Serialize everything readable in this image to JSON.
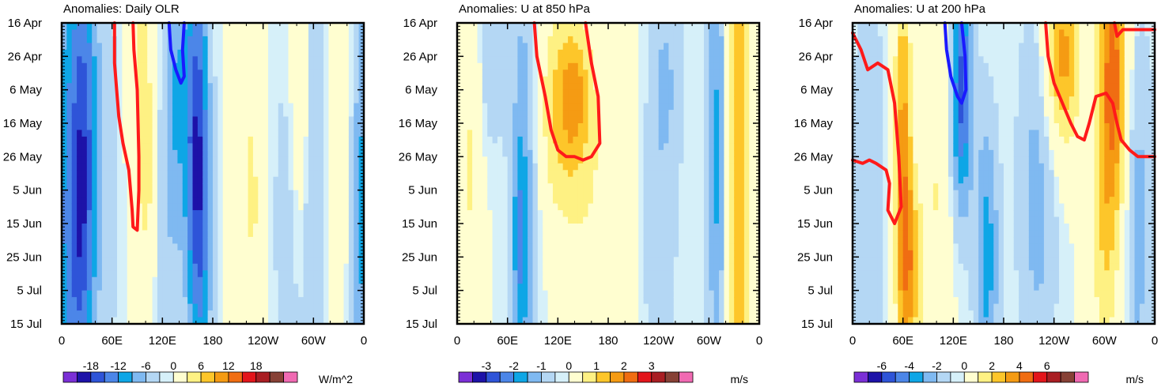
{
  "chart_data": [
    {
      "type": "heatmap",
      "title": "Anomalies: Daily OLR",
      "x_tick_labels": [
        "0",
        "60E",
        "120E",
        "180",
        "120W",
        "60W",
        "0"
      ],
      "y_tick_labels": [
        "16 Apr",
        "26 Apr",
        "6 May",
        "16 May",
        "26 May",
        "5 Jun",
        "15 Jun",
        "25 Jun",
        "5 Jul",
        "15 Jul"
      ],
      "colorbar_labels": [
        "-18",
        "-12",
        "-6",
        "0",
        "6",
        "12",
        "18"
      ],
      "units": "W/m^2",
      "xlim_deg_east": [
        0,
        360
      ],
      "ylim_days_from_16Apr": [
        0,
        90
      ],
      "fields": [
        {
          "lon": 10,
          "day": 40,
          "lw": 16,
          "lh": 60,
          "amp": -8
        },
        {
          "lon": 28,
          "day": 30,
          "lw": 11,
          "lh": 40,
          "amp": -10
        },
        {
          "lon": 20,
          "day": 75,
          "lw": 14,
          "lh": 30,
          "amp": -6
        },
        {
          "lon": 95,
          "day": 25,
          "lw": 9,
          "lh": 35,
          "amp": 6
        },
        {
          "lon": 105,
          "day": 55,
          "lw": 7,
          "lh": 30,
          "amp": 4
        },
        {
          "lon": 135,
          "day": 20,
          "lw": 10,
          "lh": 30,
          "amp": -7
        },
        {
          "lon": 160,
          "day": 25,
          "lw": 10,
          "lh": 40,
          "amp": -12
        },
        {
          "lon": 165,
          "day": 65,
          "lw": 10,
          "lh": 35,
          "amp": -9
        },
        {
          "lon": 120,
          "day": 70,
          "lw": 16,
          "lh": 30,
          "amp": -3
        },
        {
          "lon": 215,
          "day": 30,
          "lw": 10,
          "lh": 40,
          "amp": 3
        },
        {
          "lon": 230,
          "day": 55,
          "lw": 9,
          "lh": 30,
          "amp": 4
        },
        {
          "lon": 270,
          "day": 60,
          "lw": 14,
          "lh": 40,
          "amp": -3
        },
        {
          "lon": 285,
          "day": 20,
          "lw": 9,
          "lh": 35,
          "amp": 5
        },
        {
          "lon": 300,
          "day": 50,
          "lw": 9,
          "lh": 60,
          "amp": -5
        },
        {
          "lon": 335,
          "day": 30,
          "lw": 9,
          "lh": 40,
          "amp": 4
        },
        {
          "lon": 350,
          "day": 60,
          "lw": 9,
          "lh": 40,
          "amp": -2
        },
        {
          "lon": 55,
          "day": 45,
          "lw": 10,
          "lh": 45,
          "amp": -3
        }
      ],
      "contours": [
        {
          "color": "#ff1a1a",
          "points": [
            [
              63,
              0
            ],
            [
              63,
              12
            ],
            [
              68,
              28
            ],
            [
              73,
              36
            ],
            [
              80,
              44
            ],
            [
              82,
              50
            ],
            [
              84,
              56
            ],
            [
              85,
              61
            ],
            [
              90,
              62
            ],
            [
              92,
              50
            ],
            [
              92,
              40
            ],
            [
              90,
              20
            ],
            [
              86,
              8
            ],
            [
              85,
              0
            ]
          ]
        },
        {
          "color": "#1a1aff",
          "points": [
            [
              128,
              0
            ],
            [
              130,
              8
            ],
            [
              136,
              14
            ],
            [
              142,
              18
            ],
            [
              146,
              16
            ],
            [
              144,
              8
            ],
            [
              146,
              0
            ]
          ]
        }
      ]
    },
    {
      "type": "heatmap",
      "title": "Anomalies: U at 850 hPa",
      "x_tick_labels": [
        "0",
        "60E",
        "120E",
        "180",
        "120W",
        "60W",
        "0"
      ],
      "y_tick_labels": [
        "16 Apr",
        "26 Apr",
        "6 May",
        "16 May",
        "26 May",
        "5 Jun",
        "15 Jun",
        "25 Jun",
        "5 Jul",
        "15 Jul"
      ],
      "colorbar_labels": [
        "-3",
        "-2",
        "-1",
        "0",
        "1",
        "2",
        "3"
      ],
      "units": "m/s",
      "xlim_deg_east": [
        0,
        360
      ],
      "ylim_days_from_16Apr": [
        0,
        90
      ],
      "fields": [
        {
          "lon": 130,
          "day": 25,
          "lw": 25,
          "lh": 25,
          "amp": 1.5
        },
        {
          "lon": 140,
          "day": 22,
          "lw": 10,
          "lh": 10,
          "amp": 0.8
        },
        {
          "lon": 15,
          "day": 40,
          "lw": 10,
          "lh": 50,
          "amp": 0.8
        },
        {
          "lon": 80,
          "day": 50,
          "lw": 12,
          "lh": 60,
          "amp": -1.2
        },
        {
          "lon": 75,
          "day": 65,
          "lw": 6,
          "lh": 20,
          "amp": -1
        },
        {
          "lon": 335,
          "day": 45,
          "lw": 10,
          "lh": 80,
          "amp": 1.8
        },
        {
          "lon": 310,
          "day": 40,
          "lw": 8,
          "lh": 60,
          "amp": -1.4
        },
        {
          "lon": 200,
          "day": 25,
          "lw": 16,
          "lh": 30,
          "amp": 0.3
        },
        {
          "lon": 240,
          "day": 60,
          "lw": 16,
          "lh": 40,
          "amp": -0.6
        },
        {
          "lon": 250,
          "day": 15,
          "lw": 14,
          "lh": 20,
          "amp": -0.6
        },
        {
          "lon": 170,
          "day": 65,
          "lw": 30,
          "lh": 30,
          "amp": 0.4
        },
        {
          "lon": 40,
          "day": 10,
          "lw": 12,
          "lh": 20,
          "amp": -0.6
        }
      ],
      "contours": [
        {
          "color": "#ff1a1a",
          "points": [
            [
              92,
              0
            ],
            [
              95,
              10
            ],
            [
              105,
              22
            ],
            [
              112,
              32
            ],
            [
              120,
              38
            ],
            [
              130,
              40
            ],
            [
              140,
              40
            ],
            [
              150,
              41
            ],
            [
              160,
              40
            ],
            [
              170,
              36
            ],
            [
              168,
              22
            ],
            [
              160,
              12
            ],
            [
              153,
              0
            ]
          ]
        }
      ]
    },
    {
      "type": "heatmap",
      "title": "Anomalies: U at 200 hPa",
      "x_tick_labels": [
        "0",
        "60E",
        "120E",
        "180",
        "120W",
        "60W",
        "0"
      ],
      "y_tick_labels": [
        "16 Apr",
        "26 Apr",
        "6 May",
        "16 May",
        "26 May",
        "5 Jun",
        "15 Jun",
        "25 Jun",
        "5 Jul",
        "15 Jul"
      ],
      "colorbar_labels": [
        "-6",
        "-4",
        "-2",
        "0",
        "2",
        "4",
        "6"
      ],
      "units": "m/s",
      "xlim_deg_east": [
        0,
        360
      ],
      "ylim_days_from_16Apr": [
        0,
        90
      ],
      "fields": [
        {
          "lon": 60,
          "day": 40,
          "lw": 8,
          "lh": 40,
          "amp": 4
        },
        {
          "lon": 70,
          "day": 75,
          "lw": 10,
          "lh": 20,
          "amp": 3
        },
        {
          "lon": 130,
          "day": 20,
          "lw": 9,
          "lh": 25,
          "amp": -5
        },
        {
          "lon": 160,
          "day": 70,
          "lw": 10,
          "lh": 30,
          "amp": -3
        },
        {
          "lon": 250,
          "day": 10,
          "lw": 16,
          "lh": 20,
          "amp": 4
        },
        {
          "lon": 310,
          "day": 15,
          "lw": 12,
          "lh": 30,
          "amp": 5
        },
        {
          "lon": 300,
          "day": 70,
          "lw": 12,
          "lh": 30,
          "amp": 2
        },
        {
          "lon": 220,
          "day": 50,
          "lw": 16,
          "lh": 40,
          "amp": -2
        },
        {
          "lon": 20,
          "day": 60,
          "lw": 14,
          "lh": 50,
          "amp": -1.5
        },
        {
          "lon": 100,
          "day": 50,
          "lw": 12,
          "lh": 40,
          "amp": 1.5
        },
        {
          "lon": 340,
          "day": 60,
          "lw": 10,
          "lh": 40,
          "amp": -2
        }
      ],
      "contours": [
        {
          "color": "#ff1a1a",
          "points": [
            [
              0,
              3
            ],
            [
              10,
              8
            ],
            [
              18,
              14
            ],
            [
              30,
              12
            ],
            [
              42,
              14
            ],
            [
              50,
              24
            ],
            [
              55,
              40
            ],
            [
              58,
              55
            ],
            [
              50,
              60
            ],
            [
              42,
              56
            ],
            [
              44,
              48
            ],
            [
              40,
              44
            ],
            [
              28,
              42
            ],
            [
              20,
              41
            ],
            [
              12,
              42
            ],
            [
              0,
              41
            ]
          ]
        },
        {
          "color": "#ff1a1a",
          "points": [
            [
              230,
              0
            ],
            [
              233,
              10
            ],
            [
              240,
              18
            ],
            [
              250,
              24
            ],
            [
              260,
              30
            ],
            [
              268,
              34
            ],
            [
              276,
              35
            ],
            [
              282,
              30
            ],
            [
              290,
              22
            ],
            [
              302,
              21
            ],
            [
              310,
              24
            ],
            [
              315,
              30
            ],
            [
              320,
              35
            ],
            [
              330,
              38
            ],
            [
              340,
              40
            ],
            [
              350,
              40
            ],
            [
              360,
              40
            ]
          ]
        },
        {
          "color": "#ff1a1a",
          "points": [
            [
              312,
              0
            ],
            [
              315,
              4
            ],
            [
              322,
              2
            ],
            [
              335,
              2
            ],
            [
              350,
              2
            ],
            [
              360,
              2
            ]
          ]
        },
        {
          "color": "#1a1aff",
          "points": [
            [
              110,
              0
            ],
            [
              112,
              8
            ],
            [
              117,
              16
            ],
            [
              125,
              22
            ],
            [
              130,
              24
            ],
            [
              135,
              20
            ],
            [
              134,
              10
            ],
            [
              130,
              0
            ]
          ]
        }
      ]
    }
  ]
}
